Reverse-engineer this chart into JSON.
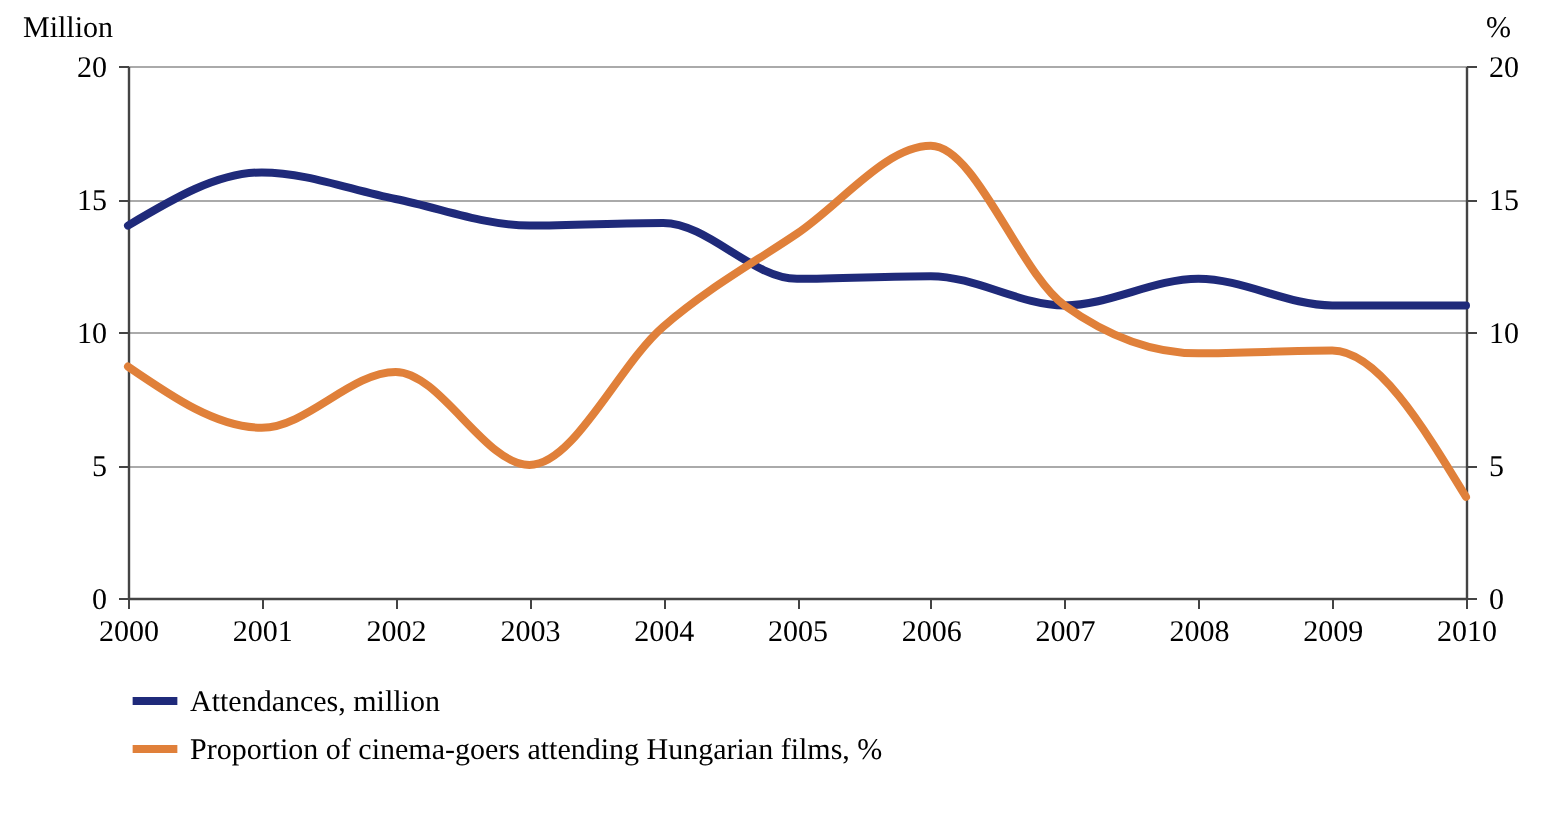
{
  "chart_data": {
    "type": "line",
    "x": [
      2000,
      2001,
      2002,
      2003,
      2004,
      2005,
      2006,
      2007,
      2008,
      2009,
      2010
    ],
    "series": [
      {
        "name": "Attendances, million",
        "color": "#1f2a7a",
        "values": [
          14,
          16,
          15,
          14,
          14.1,
          12,
          12.1,
          11,
          12,
          11,
          11
        ]
      },
      {
        "name": "Proportion of cinema-goers attending Hungarian films, %",
        "color": "#e0803a",
        "axis": "y2",
        "values": [
          8.7,
          6.4,
          8.5,
          5.0,
          10.2,
          13.7,
          17,
          11,
          9.2,
          9.3,
          3.8
        ]
      }
    ],
    "ylabel": "Million",
    "y2label": "%",
    "xlim": [
      2000,
      2010
    ],
    "xticks": [
      2000,
      2001,
      2002,
      2003,
      2004,
      2005,
      2006,
      2007,
      2008,
      2009,
      2010
    ],
    "ylim": [
      0,
      20
    ],
    "yticks": [
      0,
      5,
      10,
      15,
      20
    ],
    "y2lim": [
      0,
      20
    ],
    "y2ticks": [
      0,
      5,
      10,
      15,
      20
    ],
    "grid": "y",
    "legend": "bottom",
    "marker": "none",
    "line_style": "solid"
  }
}
